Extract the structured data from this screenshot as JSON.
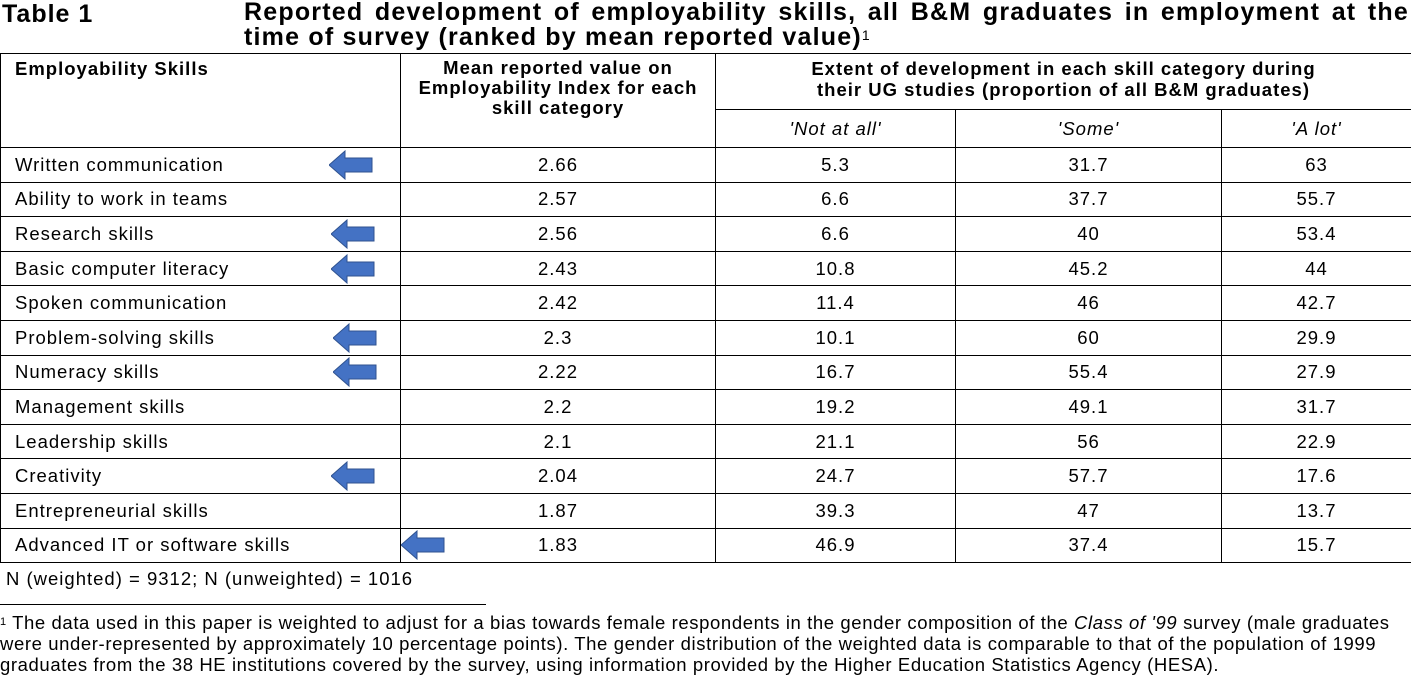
{
  "title": {
    "label": "Table 1",
    "text": "Reported development of employability skills, all B&M graduates in employment at the time of survey (ranked by mean reported value)",
    "footnote_ref": "1"
  },
  "table": {
    "headers": {
      "skill": "Employability Skills",
      "mean": "Mean reported value on Employability Index for each skill category",
      "extent": "Extent of development in each skill category during their UG studies (proportion of all B&M graduates)",
      "sub": [
        "'Not at all'",
        "'Some'",
        "'A lot'"
      ]
    },
    "rows": [
      {
        "skill": "Written communication",
        "mean": "2.66",
        "not_at_all": "5.3",
        "some": "31.7",
        "a_lot": "63"
      },
      {
        "skill": "Ability to work in teams",
        "mean": "2.57",
        "not_at_all": "6.6",
        "some": "37.7",
        "a_lot": "55.7"
      },
      {
        "skill": "Research skills",
        "mean": "2.56",
        "not_at_all": "6.6",
        "some": "40",
        "a_lot": "53.4"
      },
      {
        "skill": "Basic computer literacy",
        "mean": "2.43",
        "not_at_all": "10.8",
        "some": "45.2",
        "a_lot": "44"
      },
      {
        "skill": "Spoken communication",
        "mean": "2.42",
        "not_at_all": "11.4",
        "some": "46",
        "a_lot": "42.7"
      },
      {
        "skill": "Problem-solving skills",
        "mean": "2.3",
        "not_at_all": "10.1",
        "some": "60",
        "a_lot": "29.9"
      },
      {
        "skill": "Numeracy skills",
        "mean": "2.22",
        "not_at_all": "16.7",
        "some": "55.4",
        "a_lot": "27.9"
      },
      {
        "skill": "Management skills",
        "mean": "2.2",
        "not_at_all": "19.2",
        "some": "49.1",
        "a_lot": "31.7"
      },
      {
        "skill": "Leadership skills",
        "mean": "2.1",
        "not_at_all": "21.1",
        "some": "56",
        "a_lot": "22.9"
      },
      {
        "skill": "Creativity",
        "mean": "2.04",
        "not_at_all": "24.7",
        "some": "57.7",
        "a_lot": "17.6"
      },
      {
        "skill": "Entrepreneurial skills",
        "mean": "1.87",
        "not_at_all": "39.3",
        "some": "47",
        "a_lot": "13.7"
      },
      {
        "skill": "Advanced IT or software skills",
        "mean": "1.83",
        "not_at_all": "46.9",
        "some": "37.4",
        "a_lot": "15.7"
      }
    ]
  },
  "arrows": {
    "color": "#4472c4",
    "marked_rows": [
      "Written communication",
      "Research skills",
      "Basic computer literacy",
      "Problem-solving skills",
      "Numeracy skills",
      "Creativity",
      "Advanced IT or software skills"
    ]
  },
  "sample_note": "N (weighted) = 9312; N (unweighted) = 1016",
  "footnote": {
    "number": "1",
    "text_before": "The data used in this paper is weighted to adjust for a bias towards female respondents in the gender composition of the ",
    "italic": "Class of '99",
    "text_after": " survey (male graduates were under-represented by approximately 10 percentage points). The gender distribution of the weighted data is comparable to that of the population of 1999 graduates from the 38 HE institutions covered by the survey, using information provided by the Higher Education Statistics Agency (HESA)."
  }
}
